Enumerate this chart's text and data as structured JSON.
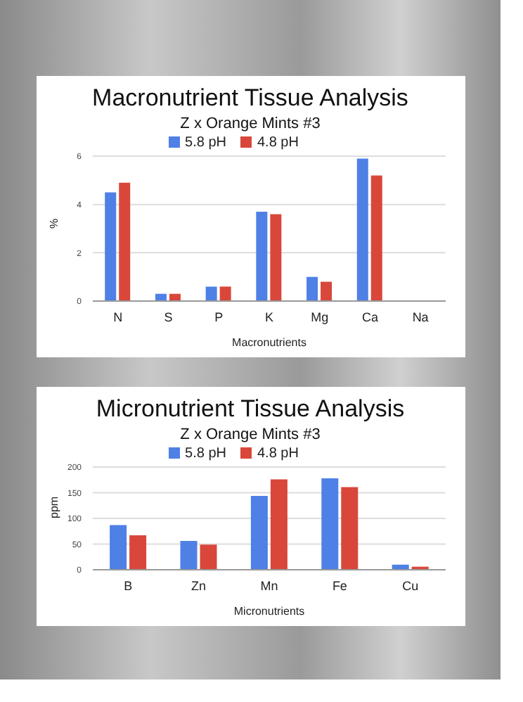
{
  "chart_data": [
    {
      "type": "bar",
      "title": "Macronutrient Tissue Analysis",
      "subtitle": "Z x Orange Mints #3",
      "xlabel": "Macronutrients",
      "ylabel": "%",
      "categories": [
        "N",
        "S",
        "P",
        "K",
        "Mg",
        "Ca",
        "Na"
      ],
      "series": [
        {
          "name": "5.8 pH",
          "color": "#4e80e6",
          "values": [
            4.5,
            0.3,
            0.6,
            3.7,
            1.0,
            5.9,
            0
          ]
        },
        {
          "name": "4.8 pH",
          "color": "#d9473b",
          "values": [
            4.9,
            0.3,
            0.6,
            3.6,
            0.8,
            5.2,
            0
          ]
        }
      ],
      "ylim": [
        0,
        6
      ],
      "yticks": [
        0,
        2,
        4,
        6
      ],
      "grid": "y",
      "legend": "top"
    },
    {
      "type": "bar",
      "title": "Micronutrient Tissue Analysis",
      "subtitle": "Z x Orange Mints #3",
      "xlabel": "Micronutrients",
      "ylabel": "ppm",
      "categories": [
        "B",
        "Zn",
        "Mn",
        "Fe",
        "Cu"
      ],
      "series": [
        {
          "name": "5.8 pH",
          "color": "#4e80e6",
          "values": [
            87,
            56,
            144,
            178,
            10
          ]
        },
        {
          "name": "4.8 pH",
          "color": "#d9473b",
          "values": [
            67,
            49,
            176,
            161,
            6
          ]
        }
      ],
      "ylim": [
        0,
        200
      ],
      "yticks": [
        0,
        50,
        100,
        150,
        200
      ],
      "grid": "y",
      "legend": "top"
    }
  ]
}
